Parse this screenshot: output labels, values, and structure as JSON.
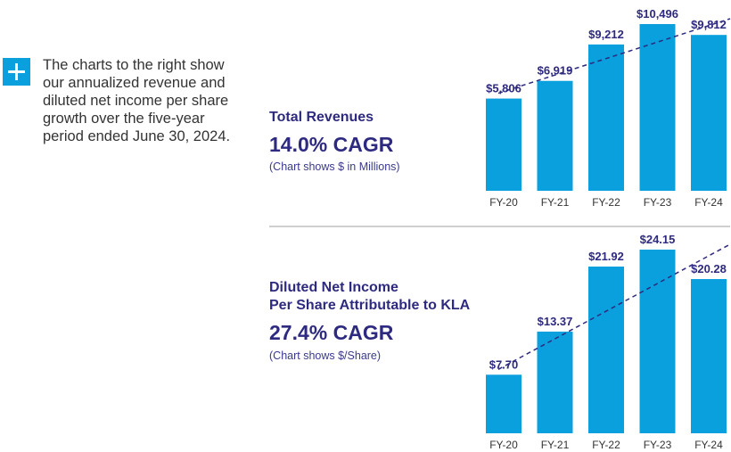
{
  "intro": {
    "text": "The charts to the right show our annualized revenue and diluted net income per share growth over the five-year period ended June 30, 2024."
  },
  "colors": {
    "bar": "#0aa0de",
    "text": "#2e2a7f",
    "trend": "#2e2a7f"
  },
  "revenue": {
    "title": "Total Revenues",
    "cagr": "14.0% CAGR",
    "unit": "(Chart shows $ in Millions)"
  },
  "eps": {
    "title_line1": "Diluted Net Income",
    "title_line2": "Per Share Attributable to KLA",
    "cagr": "27.4% CAGR",
    "unit": "(Chart shows $/Share)"
  },
  "chart_data": [
    {
      "type": "bar",
      "title": "Total Revenues",
      "categories": [
        "FY-20",
        "FY-21",
        "FY-22",
        "FY-23",
        "FY-24"
      ],
      "values": [
        5806,
        6919,
        9212,
        10496,
        9812
      ],
      "labels": [
        "$5,806",
        "$6,919",
        "$9,212",
        "$10,496",
        "$9,812"
      ],
      "ylim": [
        0,
        10496
      ],
      "trendline": true
    },
    {
      "type": "bar",
      "title": "Diluted Net Income Per Share Attributable to KLA",
      "categories": [
        "FY-20",
        "FY-21",
        "FY-22",
        "FY-23",
        "FY-24"
      ],
      "values": [
        7.7,
        13.37,
        21.92,
        24.15,
        20.28
      ],
      "labels": [
        "$7.70",
        "$13.37",
        "$21.92",
        "$24.15",
        "$20.28"
      ],
      "ylim": [
        0,
        24.15
      ],
      "trendline": true
    }
  ]
}
